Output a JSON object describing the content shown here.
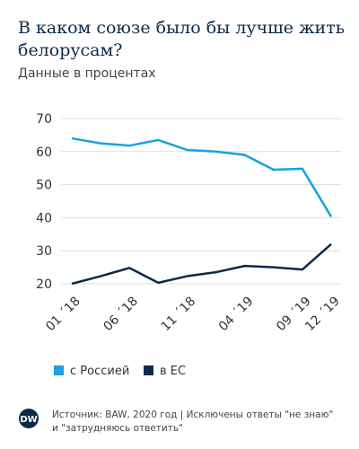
{
  "chart_data": {
    "type": "line",
    "title": [
      "В каком союзе было бы лучше жить",
      "белорусам?"
    ],
    "subtitle": "Данные в процентах",
    "categories": [
      "01 ´18",
      null,
      "06 ´18",
      null,
      "11 ´18",
      null,
      "04 ´19",
      null,
      "09 ´19",
      "12 ´19"
    ],
    "series": [
      {
        "name": "с Россией",
        "color": "#1ba0e2",
        "values": [
          64,
          62.5,
          61.8,
          63.5,
          60.5,
          60,
          59,
          54.5,
          54.8,
          40.3
        ]
      },
      {
        "name": "в ЕС",
        "color": "#0b2a4a",
        "values": [
          20,
          22.3,
          24.8,
          20.3,
          22.3,
          23.5,
          25.4,
          25,
          24.3,
          32
        ]
      }
    ],
    "ylim": [
      20,
      70
    ],
    "yticks": [
      20,
      30,
      40,
      50,
      60,
      70
    ],
    "grid": true,
    "logo": "DW",
    "source": [
      "Источник: BAW, 2020 год | Исключены ответы \"не знаю\"",
      "и \"затрудняюсь ответить\""
    ]
  }
}
